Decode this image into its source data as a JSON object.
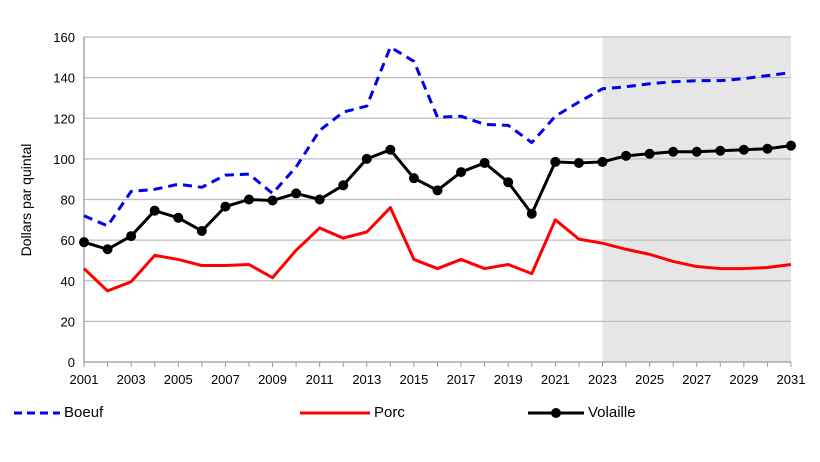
{
  "chart_data": {
    "type": "line",
    "title": "",
    "xlabel": "",
    "ylabel": "Dollars par quintal",
    "xlim": [
      2001,
      2031
    ],
    "ylim": [
      0,
      160
    ],
    "yticks": [
      0,
      20,
      40,
      60,
      80,
      100,
      120,
      140,
      160
    ],
    "xticks": [
      2001,
      2003,
      2005,
      2007,
      2009,
      2011,
      2013,
      2015,
      2017,
      2019,
      2021,
      2023,
      2025,
      2027,
      2029,
      2031
    ],
    "grid": "horizontal",
    "legend_position": "bottom",
    "shaded_region": [
      2023,
      2031
    ],
    "shade_color": "#e6e6e6",
    "x": [
      2001,
      2002,
      2003,
      2004,
      2005,
      2006,
      2007,
      2008,
      2009,
      2010,
      2011,
      2012,
      2013,
      2014,
      2015,
      2016,
      2017,
      2018,
      2019,
      2020,
      2021,
      2022,
      2023,
      2024,
      2025,
      2026,
      2027,
      2028,
      2029,
      2030,
      2031
    ],
    "series": [
      {
        "name": "Boeuf",
        "color": "#0000ee",
        "style": "dashed",
        "values": [
          72,
          67,
          84,
          85,
          87.5,
          86,
          92,
          92.5,
          83,
          96,
          114,
          123,
          126,
          155,
          148,
          120.5,
          121,
          117,
          116.5,
          108,
          121,
          128,
          134.5,
          135.5,
          137,
          138,
          138.5,
          138.5,
          139.5,
          141,
          142.5
        ]
      },
      {
        "name": "Porc",
        "color": "#ff0000",
        "style": "solid",
        "values": [
          46,
          35,
          39.5,
          52.5,
          50.5,
          47.5,
          47.5,
          48,
          41.5,
          55,
          66,
          61,
          64,
          76,
          50.5,
          46,
          50.5,
          46,
          48,
          43.5,
          70,
          60.5,
          58.5,
          55.5,
          53,
          49.5,
          47,
          46,
          46,
          46.5,
          48
        ]
      },
      {
        "name": "Volaille",
        "color": "#000000",
        "style": "solid-markers",
        "values": [
          59,
          55.5,
          62,
          74.5,
          71,
          64.5,
          76.5,
          80,
          79.5,
          83,
          80,
          87,
          100,
          104.5,
          90.5,
          84.5,
          93.5,
          98,
          88.5,
          73,
          98.5,
          98,
          98.5,
          101.5,
          102.5,
          103.5,
          103.5,
          104,
          104.5,
          105,
          106.5
        ]
      }
    ]
  }
}
